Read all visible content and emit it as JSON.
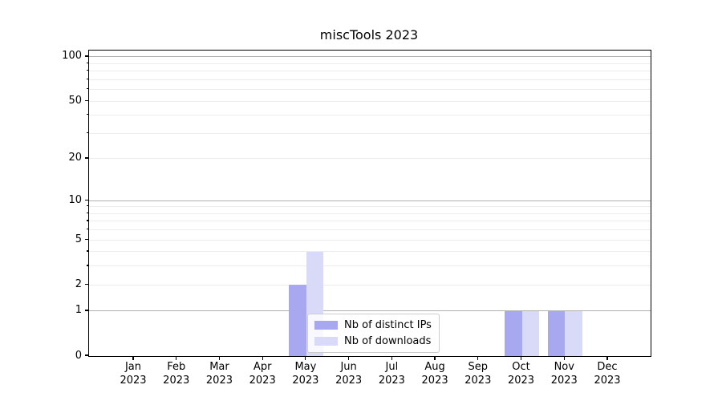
{
  "title": "miscTools 2023",
  "colors": {
    "distinct_ips_bar": "#a8a8f0",
    "downloads_bar": "#d9d9f8",
    "grid_major": "#b0b0b0",
    "grid_minor": "#ececec",
    "axis_spine": "#000000",
    "text": "#000000",
    "legend_border": "#cccccc"
  },
  "chart_data": {
    "type": "bar",
    "title": "miscTools 2023",
    "x_categories": [
      "Jan",
      "Feb",
      "Mar",
      "Apr",
      "May",
      "Jun",
      "Jul",
      "Aug",
      "Sep",
      "Oct",
      "Nov",
      "Dec"
    ],
    "x_year": "2023",
    "series": [
      {
        "name": "Nb of distinct IPs",
        "color": "#a8a8f0",
        "values": [
          0,
          0,
          0,
          0,
          2,
          0,
          0,
          0,
          0,
          1,
          1,
          0
        ]
      },
      {
        "name": "Nb of downloads",
        "color": "#d9d9f8",
        "values": [
          0,
          0,
          0,
          0,
          4,
          0,
          0,
          0,
          0,
          1,
          1,
          0
        ]
      }
    ],
    "y_scale": "log1p",
    "ylim": [
      0,
      111
    ],
    "y_axis_ticks": [
      0,
      1,
      2,
      5,
      10,
      20,
      50,
      100
    ],
    "y_major_gridlines": [
      1,
      10,
      100
    ],
    "y_minor_gridlines": [
      3,
      4,
      6,
      7,
      8,
      9,
      30,
      40,
      60,
      70,
      80,
      90
    ],
    "grid": true,
    "legend_position": "inside-bottom-center"
  }
}
